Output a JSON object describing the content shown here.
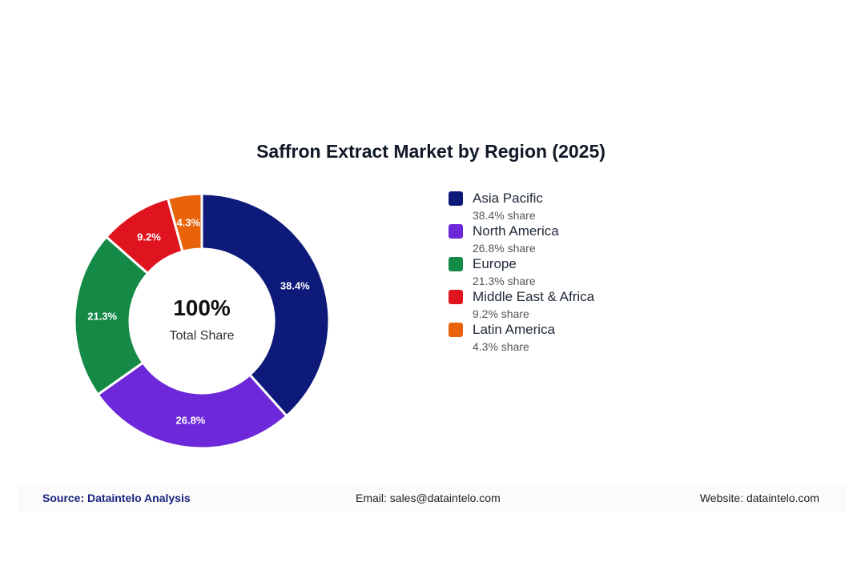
{
  "chart_data": {
    "type": "pie",
    "title": "Saffron Extract Market by Region (2025)",
    "center_value": "100%",
    "center_label": "Total Share",
    "share_suffix": "share",
    "slices": [
      {
        "name": "Asia Pacific",
        "value": 38.4,
        "label": "38.4%",
        "color": "#0d1a7a"
      },
      {
        "name": "North America",
        "value": 26.8,
        "label": "26.8%",
        "color": "#6d28d9"
      },
      {
        "name": "Europe",
        "value": 21.3,
        "label": "21.3%",
        "color": "#158a46"
      },
      {
        "name": "Middle East & Africa",
        "value": 9.2,
        "label": "9.2%",
        "color": "#e0141e"
      },
      {
        "name": "Latin America",
        "value": 4.3,
        "label": "4.3%",
        "color": "#e8630a"
      }
    ],
    "legend_position": "right"
  },
  "footer": {
    "source": "Source: Dataintelo Analysis",
    "email": "Email: sales@dataintelo.com",
    "website": "Website: dataintelo.com"
  }
}
